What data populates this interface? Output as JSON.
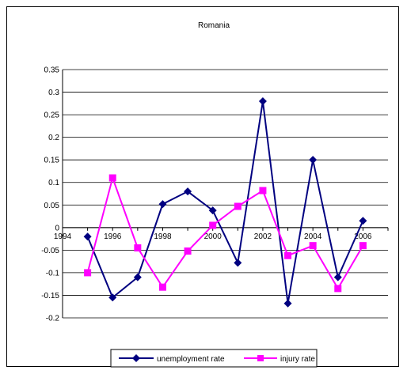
{
  "chart_data": {
    "type": "line",
    "title": "Romania",
    "xlabel": "",
    "ylabel": "",
    "x": [
      1995,
      1996,
      1997,
      1998,
      1999,
      2000,
      2001,
      2002,
      2003,
      2004,
      2005,
      2006
    ],
    "x_ticks": [
      "1994",
      "1996",
      "1998",
      "2000",
      "2002",
      "2004",
      "2006"
    ],
    "y_ticks": [
      "0.35",
      "0.3",
      "0.25",
      "0.2",
      "0.15",
      "0.1",
      "0.05",
      "0",
      "-0.05",
      "-0.1",
      "-0.15",
      "-0.2"
    ],
    "xlim": [
      1994,
      2007
    ],
    "ylim": [
      -0.2,
      0.35
    ],
    "grid": true,
    "legend": "bottom",
    "series": [
      {
        "name": "unemployment rate",
        "color": "#000080",
        "marker": "diamond",
        "values": [
          -0.02,
          -0.155,
          -0.11,
          0.052,
          0.08,
          0.038,
          -0.078,
          0.28,
          -0.168,
          0.15,
          -0.11,
          0.015
        ]
      },
      {
        "name": "injury rate",
        "color": "#ff00ff",
        "marker": "square",
        "values": [
          -0.1,
          0.11,
          -0.045,
          -0.132,
          -0.052,
          0.005,
          0.047,
          0.082,
          -0.062,
          -0.04,
          -0.135,
          -0.04
        ]
      }
    ]
  }
}
